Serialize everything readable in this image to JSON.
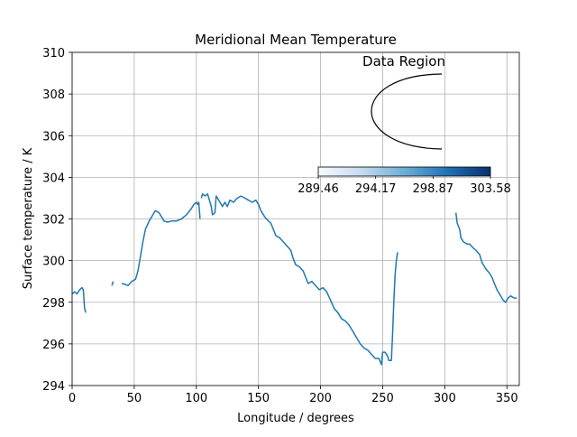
{
  "chart_data": {
    "type": "line",
    "title": "Meridional Mean Temperature",
    "xlabel": "Longitude / degrees",
    "ylabel": "Surface temperature / K",
    "xlim": [
      0,
      360
    ],
    "ylim": [
      294,
      310
    ],
    "xticks": [
      "0",
      "50",
      "100",
      "150",
      "200",
      "250",
      "300",
      "350"
    ],
    "yticks": [
      "294",
      "296",
      "298",
      "300",
      "302",
      "304",
      "306",
      "308",
      "310"
    ],
    "grid": true,
    "series_color": "#1f77b4",
    "segments": [
      [
        [
          0,
          298.4
        ],
        [
          2,
          298.5
        ],
        [
          4,
          298.4
        ],
        [
          6,
          298.6
        ],
        [
          8,
          298.7
        ],
        [
          9,
          298.6
        ],
        [
          10,
          297.7
        ],
        [
          11,
          297.5
        ]
      ],
      [
        [
          32,
          298.8
        ],
        [
          33,
          299.0
        ]
      ],
      [
        [
          40,
          298.9
        ],
        [
          43,
          298.85
        ],
        [
          45,
          298.8
        ],
        [
          48,
          299.0
        ],
        [
          51,
          299.1
        ],
        [
          53,
          299.5
        ],
        [
          55,
          300.2
        ],
        [
          57,
          300.9
        ],
        [
          59,
          301.5
        ],
        [
          62,
          301.9
        ],
        [
          65,
          302.2
        ],
        [
          67,
          302.4
        ],
        [
          70,
          302.3
        ],
        [
          72,
          302.1
        ],
        [
          74,
          301.9
        ],
        [
          77,
          301.85
        ],
        [
          80,
          301.9
        ],
        [
          84,
          301.9
        ],
        [
          88,
          302.0
        ],
        [
          92,
          302.2
        ],
        [
          96,
          302.5
        ],
        [
          98,
          302.7
        ],
        [
          100,
          302.8
        ],
        [
          101,
          302.7
        ],
        [
          102,
          302.8
        ],
        [
          103,
          302.0
        ]
      ],
      [
        [
          104,
          303.0
        ],
        [
          105,
          303.2
        ],
        [
          107,
          303.1
        ],
        [
          109,
          303.2
        ],
        [
          110,
          303.0
        ],
        [
          112,
          302.6
        ],
        [
          113,
          302.2
        ],
        [
          115,
          302.3
        ],
        [
          116,
          303.1
        ],
        [
          117,
          303.0
        ],
        [
          119,
          302.8
        ],
        [
          121,
          302.6
        ],
        [
          123,
          302.8
        ],
        [
          125,
          302.6
        ],
        [
          127,
          302.9
        ],
        [
          130,
          302.8
        ],
        [
          133,
          303.0
        ],
        [
          136,
          303.1
        ],
        [
          139,
          303.0
        ],
        [
          142,
          302.9
        ],
        [
          145,
          302.8
        ],
        [
          148,
          302.9
        ],
        [
          150,
          302.7
        ],
        [
          152,
          302.4
        ],
        [
          155,
          302.1
        ],
        [
          158,
          301.9
        ],
        [
          160,
          301.8
        ],
        [
          162,
          301.5
        ],
        [
          164,
          301.2
        ],
        [
          167,
          301.1
        ],
        [
          170,
          300.9
        ],
        [
          173,
          300.7
        ],
        [
          176,
          300.5
        ],
        [
          178,
          300.1
        ],
        [
          180,
          299.8
        ],
        [
          183,
          299.7
        ],
        [
          186,
          299.5
        ],
        [
          188,
          299.2
        ],
        [
          190,
          298.9
        ],
        [
          193,
          299.0
        ],
        [
          196,
          298.8
        ],
        [
          199,
          298.6
        ],
        [
          202,
          298.7
        ],
        [
          205,
          298.5
        ],
        [
          208,
          298.1
        ],
        [
          211,
          297.7
        ],
        [
          214,
          297.5
        ],
        [
          217,
          297.2
        ],
        [
          220,
          297.1
        ],
        [
          223,
          296.9
        ],
        [
          226,
          296.6
        ],
        [
          229,
          296.3
        ],
        [
          232,
          296.0
        ],
        [
          235,
          295.8
        ],
        [
          238,
          295.7
        ],
        [
          241,
          295.5
        ],
        [
          244,
          295.3
        ],
        [
          247,
          295.3
        ],
        [
          249,
          295.0
        ],
        [
          250,
          295.6
        ],
        [
          252,
          295.6
        ],
        [
          254,
          295.4
        ],
        [
          255,
          295.2
        ],
        [
          257,
          295.2
        ],
        [
          258,
          296.5
        ],
        [
          259,
          298.0
        ],
        [
          260,
          299.3
        ],
        [
          261,
          300.0
        ],
        [
          262,
          300.4
        ]
      ],
      [
        [
          309,
          302.3
        ],
        [
          310,
          301.8
        ],
        [
          312,
          301.5
        ],
        [
          313,
          301.1
        ],
        [
          315,
          300.9
        ],
        [
          318,
          300.8
        ],
        [
          320,
          300.8
        ],
        [
          323,
          300.6
        ],
        [
          325,
          300.5
        ],
        [
          328,
          300.3
        ],
        [
          330,
          299.9
        ],
        [
          333,
          299.6
        ],
        [
          336,
          299.4
        ],
        [
          338,
          299.2
        ],
        [
          340,
          298.9
        ],
        [
          342,
          298.6
        ],
        [
          344,
          298.4
        ],
        [
          347,
          298.1
        ],
        [
          349,
          298.0
        ],
        [
          351,
          298.2
        ],
        [
          353,
          298.3
        ],
        [
          356,
          298.2
        ],
        [
          358,
          298.2
        ]
      ]
    ]
  },
  "inset": {
    "title": "Data Region"
  },
  "colorbar": {
    "ticks": [
      "289.46",
      "294.17",
      "298.87",
      "303.58"
    ],
    "color_low": "#f7fbff",
    "color_high": "#08306b",
    "colormap": "Blues"
  }
}
